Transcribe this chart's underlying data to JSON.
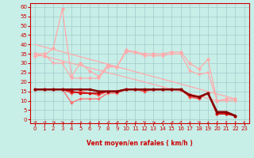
{
  "bg_color": "#c8eee8",
  "grid_color": "#a0cccc",
  "x_label": "Vent moyen/en rafales ( km/h )",
  "x_ticks": [
    0,
    1,
    2,
    3,
    4,
    5,
    6,
    7,
    8,
    9,
    10,
    11,
    12,
    13,
    14,
    15,
    16,
    17,
    18,
    19,
    20,
    21,
    22,
    23
  ],
  "y_ticks": [
    0,
    5,
    10,
    15,
    20,
    25,
    30,
    35,
    40,
    45,
    50,
    55,
    60
  ],
  "ylim": [
    -2,
    62
  ],
  "xlim": [
    -0.5,
    23.5
  ],
  "series": [
    {
      "x": [
        0,
        20
      ],
      "y": [
        35,
        10
      ],
      "color": "#ffaaaa",
      "lw": 0.9,
      "marker": null,
      "ms": 0,
      "zorder": 2
    },
    {
      "x": [
        0,
        22
      ],
      "y": [
        40,
        11
      ],
      "color": "#ffaaaa",
      "lw": 0.9,
      "marker": null,
      "ms": 0,
      "zorder": 2
    },
    {
      "x": [
        0,
        1,
        2,
        3,
        4,
        5,
        6,
        7,
        8,
        9,
        10,
        11,
        12,
        13,
        14,
        15,
        16,
        17,
        18,
        19,
        20,
        21,
        22
      ],
      "y": [
        34,
        34,
        38,
        59,
        23,
        30,
        26,
        23,
        29,
        28,
        37,
        36,
        35,
        35,
        35,
        36,
        36,
        30,
        27,
        32,
        10,
        11,
        11
      ],
      "color": "#ffaaaa",
      "lw": 0.9,
      "marker": "D",
      "ms": 1.8,
      "zorder": 2
    },
    {
      "x": [
        0,
        1,
        2,
        3,
        4,
        5,
        6,
        7,
        8,
        9,
        10,
        11,
        12,
        13,
        14,
        15,
        16,
        17,
        18,
        19,
        20,
        21,
        22
      ],
      "y": [
        35,
        35,
        30,
        30,
        22,
        22,
        22,
        22,
        28,
        28,
        36,
        36,
        34,
        34,
        34,
        35,
        35,
        26,
        24,
        25,
        10,
        10,
        10
      ],
      "color": "#ffaaaa",
      "lw": 0.9,
      "marker": "v",
      "ms": 2,
      "zorder": 2
    },
    {
      "x": [
        0,
        1,
        2,
        3,
        4,
        5,
        6,
        7,
        8,
        9,
        10,
        11,
        12,
        13,
        14,
        15,
        16,
        17,
        18,
        19,
        20,
        21,
        22
      ],
      "y": [
        16,
        16,
        16,
        16,
        9,
        11,
        11,
        11,
        14,
        14,
        16,
        16,
        16,
        16,
        16,
        16,
        16,
        12,
        12,
        14,
        3,
        3,
        2
      ],
      "color": "#ff6666",
      "lw": 0.9,
      "marker": "+",
      "ms": 3,
      "zorder": 3
    },
    {
      "x": [
        0,
        1,
        2,
        3,
        4,
        5,
        6,
        7,
        8,
        9,
        10,
        11,
        12,
        13,
        14,
        15,
        16,
        17,
        18,
        19,
        20,
        21,
        22
      ],
      "y": [
        16,
        16,
        16,
        16,
        14,
        15,
        14,
        13,
        15,
        15,
        16,
        16,
        15,
        16,
        16,
        16,
        16,
        12,
        11,
        14,
        3,
        3,
        2
      ],
      "color": "#ff4444",
      "lw": 0.9,
      "marker": "+",
      "ms": 3,
      "zorder": 3
    },
    {
      "x": [
        0,
        1,
        2,
        3,
        4,
        5,
        6,
        7,
        8,
        9,
        10,
        11,
        12,
        13,
        14,
        15,
        16,
        17,
        18,
        19,
        20,
        21,
        22
      ],
      "y": [
        16,
        16,
        16,
        16,
        15,
        14,
        14,
        14,
        15,
        15,
        16,
        16,
        16,
        16,
        16,
        16,
        16,
        13,
        12,
        14,
        3,
        3,
        2
      ],
      "color": "#cc0000",
      "lw": 1.2,
      "marker": "s",
      "ms": 2,
      "zorder": 4
    },
    {
      "x": [
        0,
        1,
        2,
        3,
        4,
        5,
        6,
        7,
        8,
        9,
        10,
        11,
        12,
        13,
        14,
        15,
        16,
        17,
        18,
        19,
        20,
        21,
        22
      ],
      "y": [
        16,
        16,
        16,
        16,
        16,
        16,
        16,
        15,
        15,
        15,
        16,
        16,
        16,
        16,
        16,
        16,
        16,
        13,
        12,
        14,
        4,
        4,
        2
      ],
      "color": "#880000",
      "lw": 1.8,
      "marker": "s",
      "ms": 2,
      "zorder": 5
    }
  ],
  "arrow_angles": [
    0,
    0,
    -20,
    -25,
    30,
    45,
    40,
    50,
    25,
    20,
    30,
    45,
    -20,
    -25,
    30,
    20,
    25,
    40,
    -20,
    40,
    50,
    60,
    85,
    85
  ]
}
